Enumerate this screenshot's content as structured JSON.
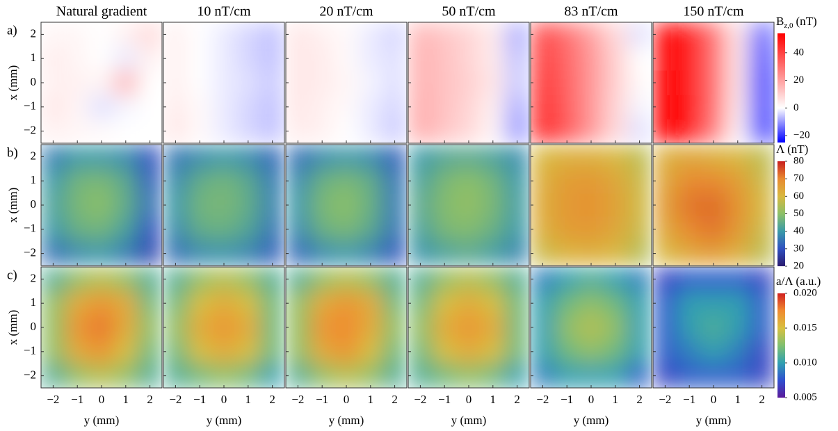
{
  "chart_data": {
    "type": "heatmap",
    "columns": [
      "Natural gradient",
      "10 nT/cm",
      "20 nT/cm",
      "50 nT/cm",
      "83 nT/cm",
      "150 nT/cm"
    ],
    "xlabel": "y (mm)",
    "ylabel": "x (mm)",
    "xlim": [
      -2.5,
      2.5
    ],
    "ylim": [
      -2.5,
      2.5
    ],
    "xticks": [
      {
        "value": -2,
        "label": "−2"
      },
      {
        "value": -1,
        "label": "−1"
      },
      0,
      1,
      2
    ],
    "yticks": [
      {
        "value": -2,
        "label": "−2"
      },
      {
        "value": -1,
        "label": "−1"
      },
      0,
      1,
      2
    ],
    "rows": [
      {
        "label": "a)",
        "cbar_label": "B",
        "cbar_sub": "z,0",
        "cbar_unit": "(nT)",
        "clim": [
          -25,
          54
        ],
        "cmap": [
          "#0000ff",
          "#ffffff",
          "#ff0000"
        ],
        "cmap_values": [
          -25,
          0,
          54
        ],
        "cticks": [
          {
            "value": -20,
            "label": "−20"
          },
          0,
          20,
          40
        ],
        "panels": [
          {
            "z": [
              [
                2,
                2,
                0,
                3,
                8
              ],
              [
                4,
                2,
                0,
                -2,
                3
              ],
              [
                3,
                3,
                2,
                15,
                0
              ],
              [
                5,
                2,
                -3,
                -1,
                0
              ],
              [
                3,
                2,
                1,
                0,
                0
              ]
            ]
          },
          {
            "z": [
              [
                3,
                0,
                -2,
                -4,
                -6
              ],
              [
                3,
                0,
                -2,
                -4,
                -6
              ],
              [
                3,
                0,
                -2,
                -3,
                -5
              ],
              [
                4,
                1,
                -2,
                -4,
                -6
              ],
              [
                5,
                1,
                -2,
                -4,
                -6
              ]
            ]
          },
          {
            "z": [
              [
                5,
                3,
                1,
                -2,
                -4
              ],
              [
                5,
                4,
                1,
                -2,
                -3
              ],
              [
                5,
                4,
                2,
                -1,
                -3
              ],
              [
                5,
                3,
                1,
                -2,
                -4
              ],
              [
                4,
                3,
                0,
                -2,
                -5
              ]
            ]
          },
          {
            "z": [
              [
                15,
                12,
                9,
                4,
                -8
              ],
              [
                16,
                13,
                9,
                4,
                -6
              ],
              [
                16,
                13,
                10,
                5,
                -5
              ],
              [
                17,
                13,
                9,
                3,
                -8
              ],
              [
                17,
                12,
                8,
                2,
                -10
              ]
            ]
          },
          {
            "z": [
              [
                38,
                30,
                20,
                8,
                -3
              ],
              [
                40,
                32,
                22,
                10,
                0
              ],
              [
                42,
                33,
                22,
                10,
                1
              ],
              [
                44,
                34,
                22,
                9,
                -1
              ],
              [
                45,
                35,
                22,
                8,
                -3
              ]
            ]
          },
          {
            "z": [
              [
                52,
                48,
                30,
                5,
                -15
              ],
              [
                52,
                48,
                30,
                5,
                -18
              ],
              [
                53,
                48,
                30,
                5,
                -20
              ],
              [
                54,
                49,
                30,
                4,
                -20
              ],
              [
                54,
                48,
                28,
                2,
                -22
              ]
            ]
          }
        ]
      },
      {
        "label": "b)",
        "cbar_label": "Λ (nT)",
        "clim": [
          20,
          80
        ],
        "cmap": [
          "#2a1a6e",
          "#3050c0",
          "#3a9aa8",
          "#8cc068",
          "#d8b840",
          "#e88a30",
          "#c81e1e"
        ],
        "cticks": [
          20,
          30,
          40,
          50,
          60,
          70,
          80
        ],
        "panels": [
          {
            "z": [
              [
                36,
                40,
                40,
                38,
                30
              ],
              [
                40,
                47,
                48,
                44,
                32
              ],
              [
                42,
                48,
                50,
                45,
                35
              ],
              [
                40,
                46,
                47,
                42,
                30
              ],
              [
                34,
                38,
                40,
                36,
                28
              ]
            ]
          },
          {
            "z": [
              [
                35,
                38,
                40,
                38,
                33
              ],
              [
                38,
                45,
                47,
                44,
                36
              ],
              [
                40,
                47,
                48,
                45,
                37
              ],
              [
                38,
                45,
                46,
                43,
                35
              ],
              [
                34,
                38,
                39,
                37,
                32
              ]
            ]
          },
          {
            "z": [
              [
                34,
                38,
                40,
                38,
                32
              ],
              [
                38,
                46,
                48,
                45,
                35
              ],
              [
                40,
                48,
                50,
                46,
                36
              ],
              [
                38,
                46,
                48,
                44,
                35
              ],
              [
                33,
                38,
                40,
                37,
                31
              ]
            ]
          },
          {
            "z": [
              [
                40,
                43,
                44,
                42,
                38
              ],
              [
                42,
                48,
                50,
                47,
                40
              ],
              [
                44,
                49,
                51,
                48,
                41
              ],
              [
                42,
                48,
                49,
                46,
                40
              ],
              [
                39,
                42,
                44,
                41,
                37
              ]
            ]
          },
          {
            "z": [
              [
                60,
                62,
                62,
                60,
                56
              ],
              [
                62,
                66,
                67,
                64,
                58
              ],
              [
                63,
                67,
                68,
                65,
                59
              ],
              [
                62,
                66,
                67,
                64,
                58
              ],
              [
                58,
                61,
                62,
                60,
                55
              ]
            ]
          },
          {
            "z": [
              [
                62,
                64,
                62,
                60,
                56
              ],
              [
                64,
                70,
                70,
                66,
                58
              ],
              [
                66,
                72,
                73,
                68,
                60
              ],
              [
                64,
                70,
                72,
                67,
                58
              ],
              [
                60,
                64,
                66,
                62,
                56
              ]
            ]
          }
        ]
      },
      {
        "label": "c)",
        "cbar_label": "a/Λ (a.u.)",
        "clim": [
          0.005,
          0.02
        ],
        "cmap": [
          "#5a1a9a",
          "#3050d0",
          "#30a0b0",
          "#80c070",
          "#d8c040",
          "#f08a30",
          "#d02020"
        ],
        "cticks": [
          0.005,
          {
            "value": 0.01,
            "label": "0.010"
          },
          0.015,
          {
            "value": 0.02,
            "label": "0.020"
          }
        ],
        "panels": [
          {
            "z": [
              [
                0.011,
                0.013,
                0.014,
                0.013,
                0.011
              ],
              [
                0.013,
                0.016,
                0.017,
                0.016,
                0.012
              ],
              [
                0.013,
                0.017,
                0.018,
                0.016,
                0.013
              ],
              [
                0.013,
                0.016,
                0.017,
                0.015,
                0.012
              ],
              [
                0.011,
                0.013,
                0.014,
                0.013,
                0.011
              ]
            ]
          },
          {
            "z": [
              [
                0.011,
                0.013,
                0.014,
                0.013,
                0.011
              ],
              [
                0.012,
                0.015,
                0.016,
                0.015,
                0.012
              ],
              [
                0.013,
                0.016,
                0.017,
                0.016,
                0.012
              ],
              [
                0.012,
                0.015,
                0.016,
                0.015,
                0.012
              ],
              [
                0.011,
                0.012,
                0.013,
                0.012,
                0.01
              ]
            ]
          },
          {
            "z": [
              [
                0.011,
                0.013,
                0.014,
                0.013,
                0.011
              ],
              [
                0.013,
                0.016,
                0.017,
                0.016,
                0.012
              ],
              [
                0.013,
                0.017,
                0.0175,
                0.016,
                0.013
              ],
              [
                0.013,
                0.016,
                0.017,
                0.015,
                0.012
              ],
              [
                0.011,
                0.013,
                0.014,
                0.013,
                0.011
              ]
            ]
          },
          {
            "z": [
              [
                0.011,
                0.013,
                0.014,
                0.013,
                0.011
              ],
              [
                0.012,
                0.015,
                0.016,
                0.015,
                0.012
              ],
              [
                0.013,
                0.016,
                0.017,
                0.016,
                0.012
              ],
              [
                0.012,
                0.015,
                0.016,
                0.015,
                0.012
              ],
              [
                0.011,
                0.012,
                0.013,
                0.012,
                0.01
              ]
            ]
          },
          {
            "z": [
              [
                0.009,
                0.01,
                0.011,
                0.01,
                0.009
              ],
              [
                0.01,
                0.012,
                0.013,
                0.012,
                0.01
              ],
              [
                0.01,
                0.013,
                0.014,
                0.013,
                0.01
              ],
              [
                0.01,
                0.012,
                0.013,
                0.012,
                0.01
              ],
              [
                0.009,
                0.01,
                0.01,
                0.01,
                0.008
              ]
            ]
          },
          {
            "z": [
              [
                0.007,
                0.008,
                0.008,
                0.008,
                0.007
              ],
              [
                0.008,
                0.01,
                0.01,
                0.01,
                0.008
              ],
              [
                0.008,
                0.01,
                0.011,
                0.01,
                0.008
              ],
              [
                0.008,
                0.009,
                0.01,
                0.009,
                0.007
              ],
              [
                0.007,
                0.008,
                0.008,
                0.008,
                0.007
              ]
            ]
          }
        ]
      }
    ]
  }
}
